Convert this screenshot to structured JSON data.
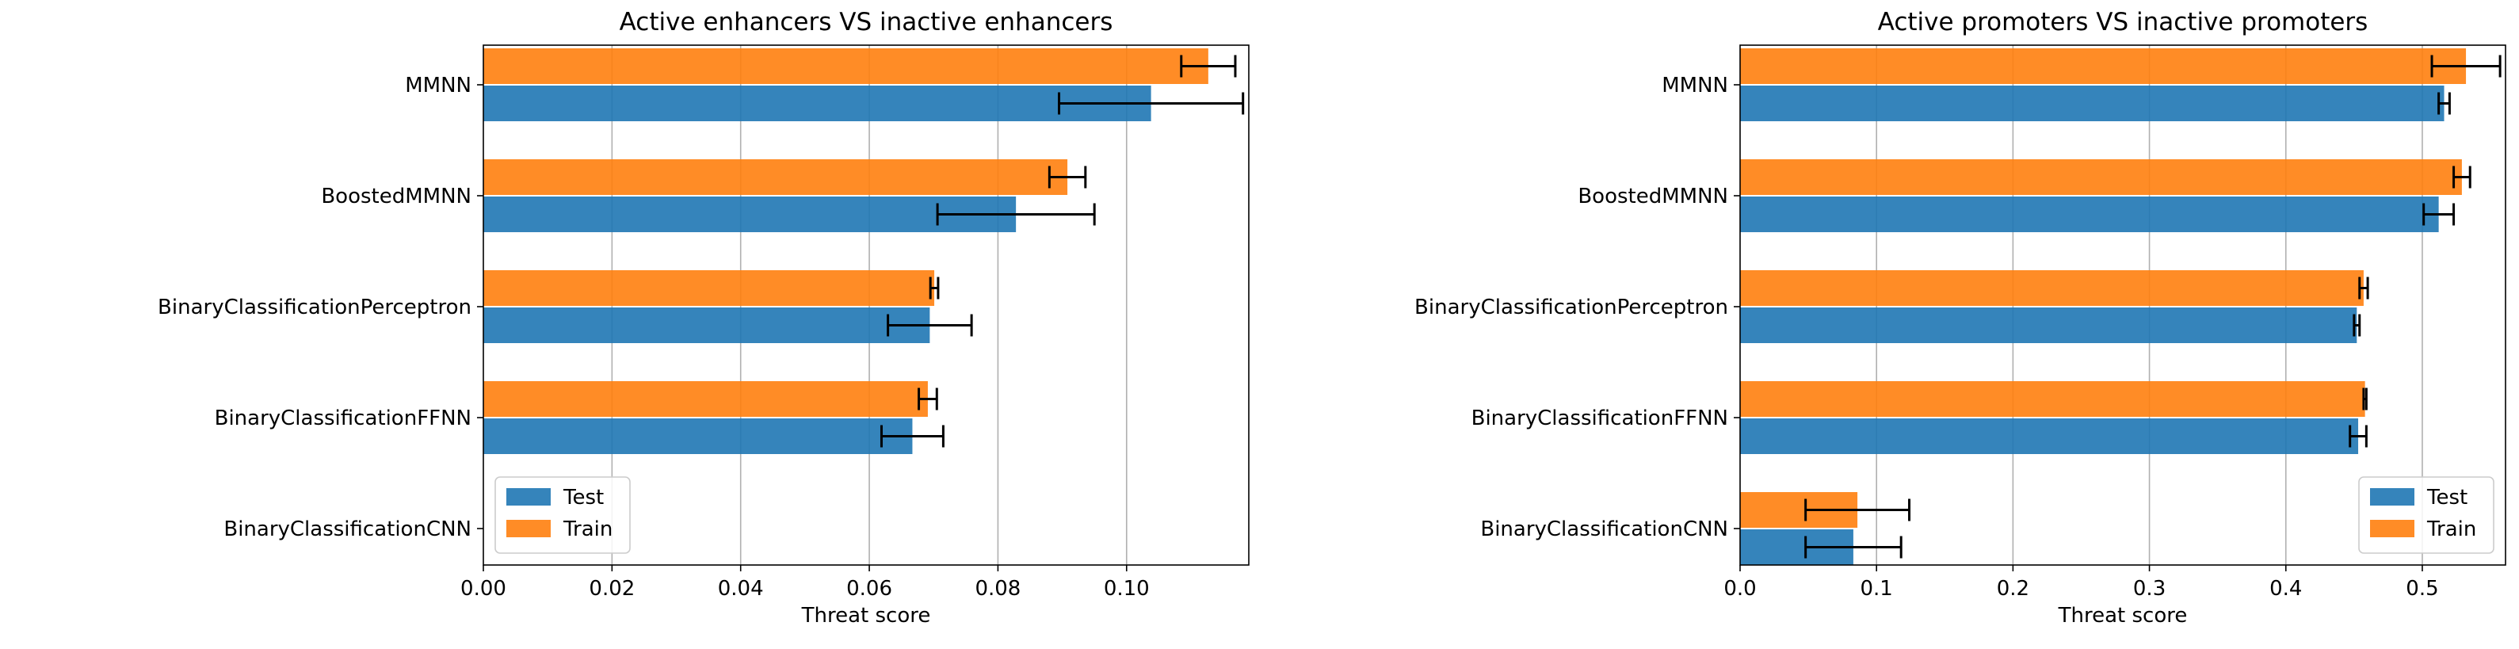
{
  "chart_data": [
    {
      "type": "bar",
      "orientation": "horizontal",
      "title": "Active enhancers VS inactive enhancers",
      "xlabel": "Threat score",
      "ylabel": "",
      "xlim": [
        0,
        0.119
      ],
      "xticks": [
        0.0,
        0.02,
        0.04,
        0.06,
        0.08,
        0.1
      ],
      "xtick_labels": [
        "0.00",
        "0.02",
        "0.04",
        "0.06",
        "0.08",
        "0.10"
      ],
      "grid": "vertical",
      "legend_position": "lower-left",
      "categories": [
        "MMNN",
        "BoostedMMNN",
        "BinaryClassificationPerceptron",
        "BinaryClassificationFFNN",
        "BinaryClassificationCNN"
      ],
      "series": [
        {
          "name": "Train",
          "color": "#ff7f0e",
          "values": [
            0.1127,
            0.0908,
            0.0701,
            0.0691,
            0.0
          ],
          "errors": [
            0.0042,
            0.0028,
            0.0006,
            0.0014,
            0.0
          ]
        },
        {
          "name": "Test",
          "color": "#1f77b4",
          "values": [
            0.1038,
            0.0828,
            0.0694,
            0.0667,
            0.0
          ],
          "errors": [
            0.0143,
            0.0122,
            0.0065,
            0.0048,
            0.0
          ]
        }
      ],
      "legend": [
        {
          "name": "Test",
          "color": "#1f77b4"
        },
        {
          "name": "Train",
          "color": "#ff7f0e"
        }
      ]
    },
    {
      "type": "bar",
      "orientation": "horizontal",
      "title": "Active promoters VS inactive promoters",
      "xlabel": "Threat score",
      "ylabel": "",
      "xlim": [
        0,
        0.561
      ],
      "xticks": [
        0.0,
        0.1,
        0.2,
        0.3,
        0.4,
        0.5
      ],
      "xtick_labels": [
        "0.0",
        "0.1",
        "0.2",
        "0.3",
        "0.4",
        "0.5"
      ],
      "grid": "vertical",
      "legend_position": "lower-right",
      "categories": [
        "MMNN",
        "BoostedMMNN",
        "BinaryClassificationPerceptron",
        "BinaryClassificationFFNN",
        "BinaryClassificationCNN"
      ],
      "series": [
        {
          "name": "Train",
          "color": "#ff7f0e",
          "values": [
            0.532,
            0.529,
            0.457,
            0.458,
            0.086
          ],
          "errors": [
            0.025,
            0.006,
            0.003,
            0.001,
            0.038
          ]
        },
        {
          "name": "Test",
          "color": "#1f77b4",
          "values": [
            0.516,
            0.512,
            0.452,
            0.453,
            0.083
          ],
          "errors": [
            0.004,
            0.011,
            0.002,
            0.006,
            0.035
          ]
        }
      ],
      "legend": [
        {
          "name": "Test",
          "color": "#1f77b4"
        },
        {
          "name": "Train",
          "color": "#ff7f0e"
        }
      ]
    }
  ]
}
